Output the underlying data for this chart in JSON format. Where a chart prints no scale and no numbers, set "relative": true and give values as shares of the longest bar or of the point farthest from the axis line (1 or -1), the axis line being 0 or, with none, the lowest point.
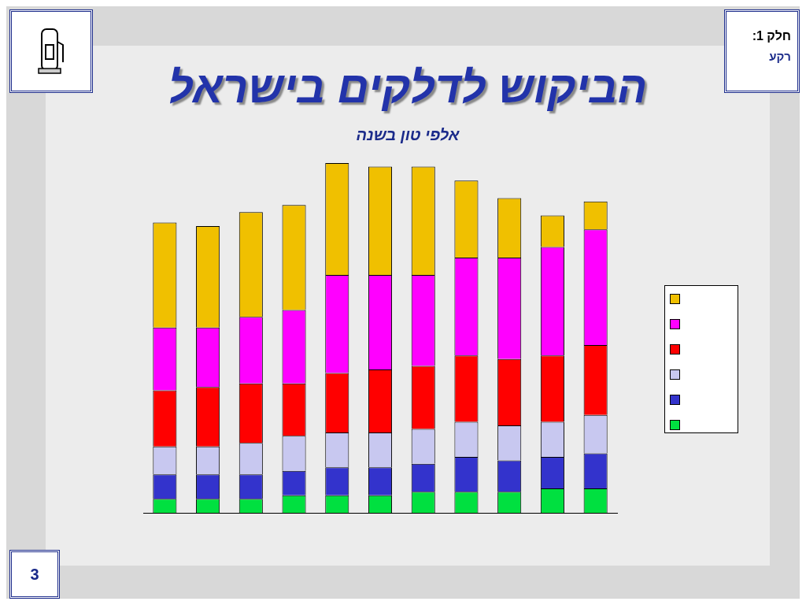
{
  "chart_data": {
    "type": "bar",
    "title": "הביקוש לדלקים בישראל",
    "subtitle": "אלפי טון בשנה",
    "annotations": [
      "חלק 1:",
      "רקע",
      "3"
    ],
    "categories": [
      null,
      null,
      null,
      null,
      null,
      null,
      null,
      null,
      null,
      null,
      null
    ],
    "stacked": true,
    "relative": true,
    "series": [
      {
        "color": "#00e040",
        "values": [
          0.04,
          0.04,
          0.04,
          0.05,
          0.05,
          0.05,
          0.06,
          0.06,
          0.06,
          0.07,
          0.07
        ]
      },
      {
        "color": "#3333cc",
        "values": [
          0.07,
          0.07,
          0.07,
          0.07,
          0.08,
          0.08,
          0.08,
          0.1,
          0.09,
          0.09,
          0.1
        ]
      },
      {
        "color": "#c8c8f0",
        "values": [
          0.08,
          0.08,
          0.09,
          0.1,
          0.1,
          0.1,
          0.1,
          0.1,
          0.1,
          0.1,
          0.11
        ]
      },
      {
        "color": "#ff0000",
        "values": [
          0.16,
          0.17,
          0.17,
          0.15,
          0.17,
          0.18,
          0.18,
          0.19,
          0.19,
          0.19,
          0.2
        ]
      },
      {
        "color": "#ff00ff",
        "values": [
          0.18,
          0.17,
          0.19,
          0.21,
          0.28,
          0.27,
          0.26,
          0.28,
          0.29,
          0.31,
          0.33
        ]
      },
      {
        "color": "#f0c000",
        "values": [
          0.3,
          0.29,
          0.3,
          0.3,
          0.32,
          0.31,
          0.31,
          0.22,
          0.17,
          0.09,
          0.08
        ]
      }
    ]
  }
}
